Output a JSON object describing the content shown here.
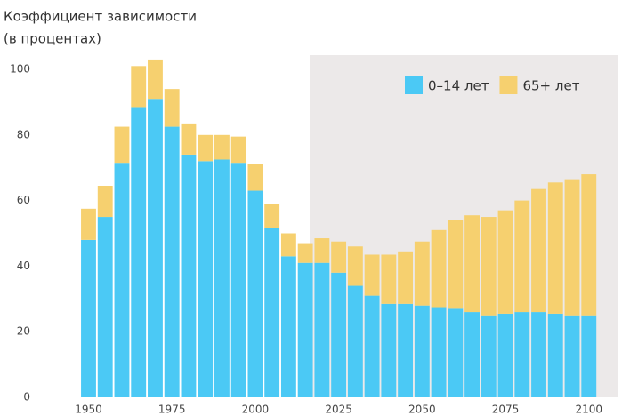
{
  "chart_data": {
    "type": "stacked_bar",
    "title": "Коэффициент зависимости",
    "subtitle": "(в процентах)",
    "x": [
      1950,
      1955,
      1960,
      1965,
      1970,
      1975,
      1980,
      1985,
      1990,
      1995,
      2000,
      2005,
      2010,
      2015,
      2020,
      2025,
      2030,
      2035,
      2040,
      2045,
      2050,
      2055,
      2060,
      2065,
      2070,
      2075,
      2080,
      2085,
      2090,
      2095,
      2100
    ],
    "series": [
      {
        "name": "0–14 лет",
        "color": "#4bc9f5",
        "values": [
          48,
          55,
          71.5,
          88.5,
          91,
          82.5,
          74,
          72,
          72.5,
          71.5,
          63,
          51.5,
          43,
          41,
          41,
          38,
          34,
          31,
          28.5,
          28.5,
          28,
          27.5,
          27,
          26,
          25,
          25.5,
          26,
          26,
          25.5,
          25,
          25
        ]
      },
      {
        "name": "65+ лет",
        "color": "#f6d06f",
        "values": [
          9.5,
          9.5,
          11,
          12.5,
          12,
          11.5,
          9.5,
          8,
          7.5,
          8,
          8,
          7.5,
          7,
          6,
          7.5,
          9.5,
          12,
          12.5,
          15,
          16,
          19.5,
          23.5,
          27,
          29.5,
          30,
          31.5,
          34,
          37.5,
          40,
          41.5,
          43
        ]
      }
    ],
    "xlim": [
      1944,
      2103
    ],
    "xticks": [
      1950,
      1975,
      2000,
      2025,
      2050,
      2075,
      2100
    ],
    "ylim": [
      0,
      100
    ],
    "yticks": [
      0,
      20,
      40,
      60,
      80,
      100
    ],
    "legend": "top-right"
  }
}
